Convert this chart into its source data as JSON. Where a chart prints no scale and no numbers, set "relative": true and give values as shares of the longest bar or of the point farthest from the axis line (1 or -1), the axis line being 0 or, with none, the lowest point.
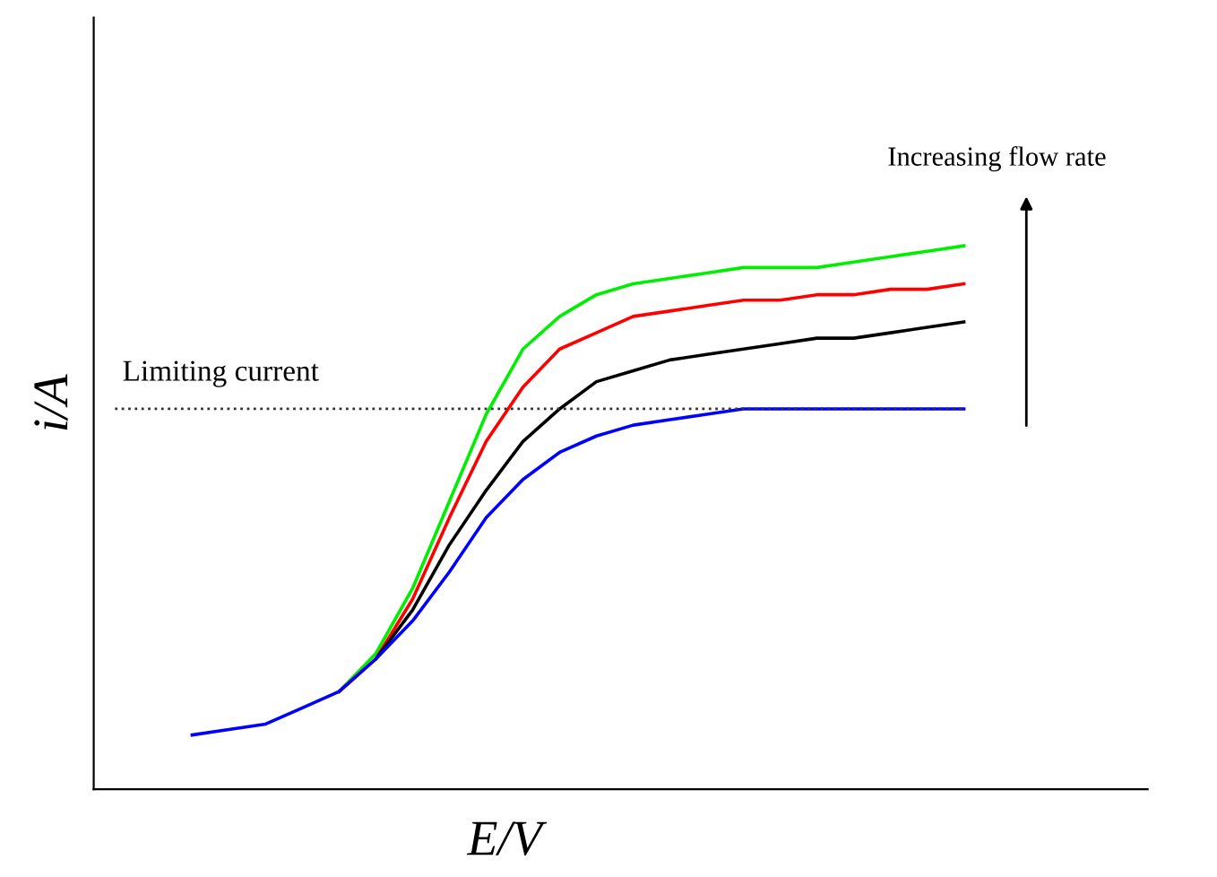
{
  "chart_data": {
    "type": "line",
    "relative": true,
    "xlabel": "E/V",
    "ylabel": "i/A",
    "categories": [
      null,
      null,
      null,
      null,
      null,
      null,
      null,
      null,
      null,
      null,
      null,
      null,
      null,
      null,
      null,
      null,
      null,
      null,
      null,
      null,
      null,
      null
    ],
    "series": [
      {
        "color": "#00ee00",
        "values": [
          null,
          null,
          null,
          null,
          0.18,
          0.25,
          0.37,
          0.53,
          0.69,
          0.81,
          0.87,
          0.91,
          0.93,
          0.94,
          0.95,
          0.96,
          0.96,
          0.96,
          0.97,
          0.98,
          0.99,
          1.0
        ]
      },
      {
        "color": "#ff0000",
        "values": [
          null,
          null,
          null,
          null,
          0.18,
          0.24,
          0.35,
          0.5,
          0.64,
          0.74,
          0.81,
          0.84,
          0.87,
          0.88,
          0.89,
          0.9,
          0.9,
          0.91,
          0.91,
          0.92,
          0.92,
          0.93
        ]
      },
      {
        "color": "#000000",
        "values": [
          null,
          null,
          null,
          null,
          null,
          0.24,
          0.33,
          0.45,
          0.55,
          0.64,
          0.7,
          0.75,
          0.77,
          0.79,
          0.8,
          0.81,
          0.82,
          0.83,
          0.83,
          0.84,
          0.85,
          0.86
        ]
      },
      {
        "color": "#0000ff",
        "values": [
          0.1,
          0.11,
          0.12,
          0.15,
          0.18,
          0.24,
          0.31,
          0.4,
          0.5,
          0.57,
          0.62,
          0.65,
          0.67,
          0.68,
          0.69,
          0.7,
          0.7,
          0.7,
          0.7,
          0.7,
          0.7,
          0.7
        ]
      }
    ],
    "ref_lines": [
      {
        "axis": "y",
        "value": 0.7,
        "label": "Limiting current",
        "color": "#333333",
        "line_style": "dotted"
      }
    ],
    "annotations": [
      "Increasing flow rate"
    ],
    "grid": false,
    "legend": false,
    "marker": "none",
    "line_style": "solid"
  }
}
